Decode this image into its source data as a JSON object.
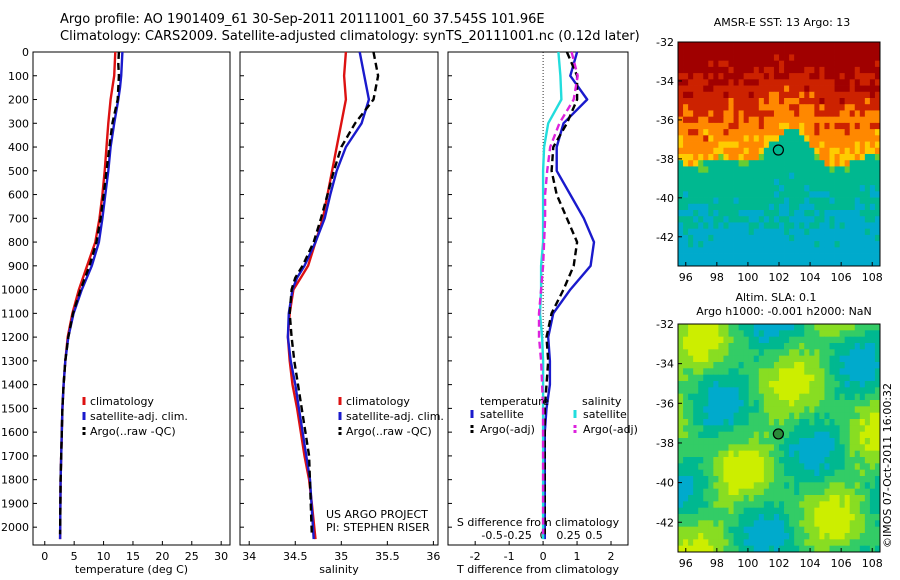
{
  "header": {
    "line1": "Argo profile: AO 1901409_61 30-Sep-2011 20111001_60 37.545S 101.96E",
    "line2": "Climatology: CARS2009. Satellite-adjusted climatology: synTS_20111001.nc (0.12d later)"
  },
  "footer_text": {
    "project": "US ARGO PROJECT",
    "pi": "PI: STEPHEN RISER",
    "credit": "©IMOS 07-Oct-2011 16:00:32"
  },
  "colors": {
    "climatology": "#dd1111",
    "satellite": "#1a1acc",
    "argo": "#000000",
    "sat_salinity": "#22dddd",
    "argo_salinity": "#dd22dd"
  },
  "chart_data": [
    {
      "type": "line",
      "xlabel": "temperature (deg C)",
      "ylabel": "",
      "xlim": [
        -2,
        31.5
      ],
      "ylim": [
        0,
        2075
      ],
      "xticks": [
        0,
        5,
        10,
        15,
        20,
        25,
        30
      ],
      "yticks": [
        0,
        100,
        200,
        300,
        400,
        500,
        600,
        700,
        800,
        900,
        1000,
        1100,
        1200,
        1300,
        1400,
        1500,
        1600,
        1700,
        1800,
        1900,
        2000
      ],
      "legend": [
        "climatology",
        "satellite-adj. clim.",
        "Argo(..raw -QC)"
      ],
      "series": [
        {
          "name": "climatology",
          "x": [
            12.0,
            11.8,
            11.5,
            11.2,
            10.8,
            10.5,
            10.2,
            9.8,
            9.3,
            8.6,
            7.2,
            5.8,
            4.7,
            3.9,
            3.5,
            3.2,
            3.0,
            2.9,
            2.8,
            2.7,
            2.6
          ],
          "y": [
            0,
            100,
            150,
            200,
            300,
            400,
            500,
            600,
            700,
            800,
            900,
            1000,
            1100,
            1200,
            1300,
            1400,
            1500,
            1600,
            1700,
            1800,
            2050
          ]
        },
        {
          "name": "satellite-adj. clim.",
          "x": [
            13.2,
            13.0,
            12.8,
            12.5,
            11.8,
            11.2,
            10.8,
            10.3,
            9.8,
            9.2,
            8.0,
            6.3,
            4.9,
            4.0,
            3.5,
            3.2,
            3.0,
            2.9,
            2.8,
            2.7,
            2.6
          ],
          "y": [
            0,
            100,
            150,
            200,
            300,
            400,
            500,
            600,
            700,
            800,
            900,
            1000,
            1100,
            1200,
            1300,
            1400,
            1500,
            1600,
            1700,
            1800,
            2050
          ]
        },
        {
          "name": "Argo(..raw -QC)",
          "x": [
            12.6,
            12.5,
            12.6,
            12.4,
            11.5,
            11.0,
            10.5,
            10.0,
            9.5,
            8.8,
            7.6,
            6.1,
            4.8,
            4.0,
            3.5,
            3.2,
            3.0,
            2.9,
            2.8,
            2.7,
            2.6
          ],
          "y": [
            0,
            50,
            100,
            200,
            300,
            400,
            500,
            600,
            700,
            800,
            900,
            1000,
            1100,
            1200,
            1300,
            1400,
            1500,
            1600,
            1700,
            1800,
            2030
          ]
        }
      ]
    },
    {
      "type": "line",
      "xlabel": "salinity",
      "ylabel": "",
      "xlim": [
        33.9,
        36.05
      ],
      "ylim": [
        0,
        2075
      ],
      "xticks": [
        34,
        34.5,
        35,
        35.5,
        36
      ],
      "xticklabels": [
        "34",
        "34.5",
        "35",
        "35.5",
        "36"
      ],
      "legend": [
        "climatology",
        "satellite-adj. clim.",
        "Argo(..raw -QC)"
      ],
      "series": [
        {
          "name": "climatology",
          "x": [
            35.05,
            35.03,
            35.05,
            35.0,
            34.95,
            34.9,
            34.85,
            34.8,
            34.72,
            34.64,
            34.56,
            34.48,
            34.44,
            34.42,
            34.44,
            34.47,
            34.52,
            34.56,
            34.6,
            34.65,
            34.68,
            34.72
          ],
          "y": [
            0,
            100,
            200,
            300,
            400,
            500,
            600,
            700,
            800,
            900,
            950,
            1000,
            1100,
            1200,
            1300,
            1400,
            1500,
            1600,
            1700,
            1800,
            1900,
            2050
          ]
        },
        {
          "name": "satellite-adj. clim.",
          "x": [
            35.2,
            35.25,
            35.3,
            35.22,
            35.05,
            34.95,
            34.88,
            34.82,
            34.72,
            34.6,
            34.52,
            34.47,
            34.43,
            34.42,
            34.45,
            34.5,
            34.54,
            34.58,
            34.62,
            34.66,
            34.7
          ],
          "y": [
            0,
            100,
            200,
            300,
            400,
            500,
            600,
            700,
            800,
            900,
            950,
            1000,
            1100,
            1200,
            1300,
            1400,
            1500,
            1600,
            1700,
            1800,
            2050
          ]
        },
        {
          "name": "Argo(..raw -QC)",
          "x": [
            35.35,
            35.4,
            35.35,
            35.15,
            35.0,
            34.92,
            34.85,
            34.78,
            34.7,
            34.58,
            34.5,
            34.46,
            34.44,
            34.46,
            34.49,
            34.53,
            34.57,
            34.61,
            34.65,
            34.68
          ],
          "y": [
            0,
            100,
            200,
            300,
            400,
            500,
            600,
            700,
            800,
            900,
            950,
            1000,
            1100,
            1200,
            1300,
            1400,
            1500,
            1600,
            1700,
            2030
          ]
        }
      ]
    },
    {
      "type": "line",
      "xlabel": "T difference from climatology",
      "top_label": "S difference from climatology",
      "xlim": [
        -2.8,
        2.5
      ],
      "ylim": [
        0,
        2075
      ],
      "xticks": [
        -2,
        -1,
        0,
        1,
        2
      ],
      "top_xticks": [
        -0.5,
        -0.25,
        0,
        0.25,
        0.5
      ],
      "top_xticklabels": [
        "-0.5",
        "-0.25",
        "0",
        "0.25",
        "0.5"
      ],
      "legend_left_title": "temperature",
      "legend_right_title": "salinity",
      "legend": [
        "satellite",
        "Argo(-adj)",
        "satellite",
        "Argo(-adj)"
      ],
      "series": [
        {
          "name": "satellite",
          "kind": "temperature",
          "x": [
            1.0,
            0.8,
            1.3,
            0.6,
            0.4,
            0.4,
            0.8,
            1.2,
            1.5,
            1.4,
            0.8,
            0.3,
            0.15,
            0.2,
            0.2,
            0.1,
            0.05,
            0.05,
            0.05,
            0.05
          ],
          "y": [
            0,
            100,
            200,
            300,
            400,
            500,
            600,
            700,
            800,
            900,
            1000,
            1100,
            1200,
            1300,
            1400,
            1500,
            1600,
            1700,
            1800,
            2050
          ]
        },
        {
          "name": "Argo(-adj)",
          "kind": "temperature",
          "x": [
            0.7,
            1.0,
            1.0,
            0.7,
            0.3,
            0.25,
            0.4,
            0.7,
            1.0,
            0.9,
            0.6,
            0.25,
            0.1,
            0.15,
            0.1,
            0.05,
            0.05,
            0.05,
            0.05,
            0.05
          ],
          "y": [
            0,
            100,
            200,
            300,
            400,
            500,
            600,
            700,
            800,
            900,
            1000,
            1100,
            1200,
            1300,
            1400,
            1500,
            1600,
            1700,
            1800,
            2030
          ]
        },
        {
          "name": "satellite",
          "kind": "salinity",
          "x": [
            0.15,
            0.17,
            0.18,
            0.05,
            0.01,
            0.0,
            0.0,
            0.0,
            0.0,
            -0.02,
            -0.02,
            -0.03,
            -0.01,
            0.0,
            0.0,
            0.0,
            0.0,
            0.0,
            0.0,
            0.0
          ],
          "y": [
            0,
            100,
            200,
            300,
            400,
            500,
            600,
            700,
            800,
            900,
            1000,
            1100,
            1200,
            1300,
            1400,
            1500,
            1600,
            1700,
            1800,
            2050
          ]
        },
        {
          "name": "Argo(-adj)",
          "kind": "salinity",
          "x": [
            0.28,
            0.34,
            0.3,
            0.16,
            0.07,
            0.04,
            0.02,
            0.02,
            0.01,
            0.0,
            -0.02,
            -0.04,
            -0.04,
            -0.02,
            -0.01,
            0.0,
            0.0,
            0.0,
            0.0,
            0.0
          ],
          "y": [
            0,
            100,
            200,
            300,
            400,
            500,
            600,
            700,
            800,
            900,
            1000,
            1100,
            1200,
            1300,
            1400,
            1500,
            1600,
            1700,
            1800,
            2030
          ]
        }
      ]
    },
    {
      "type": "heatmap",
      "title": "AMSR-E SST: 13 Argo: 13",
      "xlim": [
        95.5,
        108.5
      ],
      "ylim": [
        -43.5,
        -32
      ],
      "xticks": [
        96,
        98,
        100,
        102,
        104,
        106,
        108
      ],
      "yticks": [
        -32,
        -34,
        -36,
        -38,
        -40,
        -42
      ],
      "marker": {
        "lon": 101.96,
        "lat": -37.545,
        "style": "open-circle"
      },
      "colorscale": [
        "#00aacc",
        "#00b890",
        "#66cc33",
        "#ffcc00",
        "#ff8800",
        "#cc2200",
        "#a00000"
      ]
    },
    {
      "type": "heatmap",
      "title": "Altim. SLA: 0.1",
      "subtitle": "Argo h1000: -0.001 h2000: NaN",
      "xlim": [
        95.5,
        108.5
      ],
      "ylim": [
        -43.5,
        -32
      ],
      "xticks": [
        96,
        98,
        100,
        102,
        104,
        106,
        108
      ],
      "yticks": [
        -32,
        -34,
        -36,
        -38,
        -40,
        -42
      ],
      "marker": {
        "lon": 101.96,
        "lat": -37.545,
        "style": "filled-circle"
      },
      "colorscale": [
        "#00aacc",
        "#00b890",
        "#33cc66",
        "#88dd22",
        "#ccee00"
      ]
    }
  ]
}
